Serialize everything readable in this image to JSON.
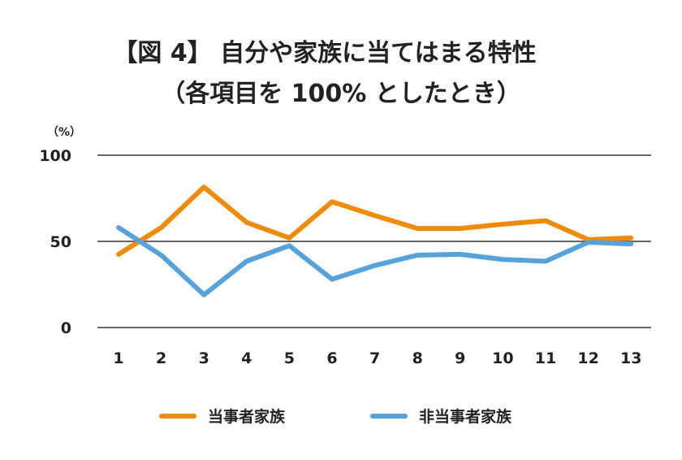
{
  "chart_data": {
    "type": "line",
    "title": "【図 4】 自分や家族に当てはまる特性",
    "subtitle": "（各項目を 100% としたとき）",
    "ylabel": "（%）",
    "xlabel": "",
    "categories": [
      "1",
      "2",
      "3",
      "4",
      "5",
      "6",
      "7",
      "8",
      "9",
      "10",
      "11",
      "12",
      "13"
    ],
    "yticks": [
      "0",
      "50",
      "100"
    ],
    "ylim": [
      0,
      100
    ],
    "grid": "horizontal at 0, 50, 100",
    "legend_position": "bottom",
    "series": [
      {
        "name": "当事者家族",
        "color": "#EE8C0A",
        "values": [
          42.5,
          58,
          81.5,
          61,
          52,
          73,
          65,
          57.5,
          57.5,
          60,
          62,
          51,
          52
        ]
      },
      {
        "name": "非当事者家族",
        "color": "#55A3DA",
        "values": [
          58,
          42,
          19,
          38.5,
          47.5,
          28,
          36,
          42,
          42.5,
          39.5,
          38.5,
          49.5,
          48.5
        ]
      }
    ]
  }
}
